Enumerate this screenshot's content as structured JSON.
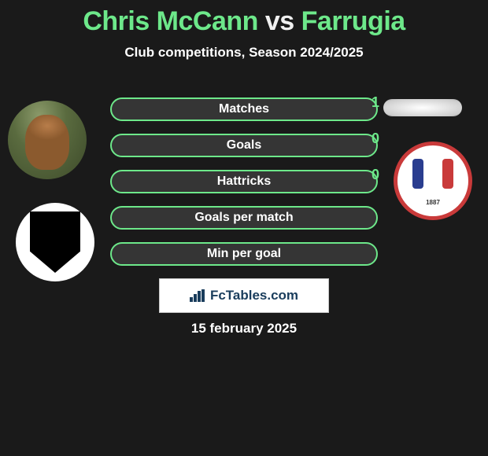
{
  "title": {
    "player1": "Chris McCann",
    "vs": "vs",
    "player2": "Farrugia"
  },
  "subtitle": "Club competitions, Season 2024/2025",
  "stats": [
    {
      "label": "Matches",
      "value": "1"
    },
    {
      "label": "Goals",
      "value": "0"
    },
    {
      "label": "Hattricks",
      "value": "0"
    },
    {
      "label": "Goals per match",
      "value": ""
    },
    {
      "label": "Min per goal",
      "value": ""
    }
  ],
  "club_badge_right_year": "1887",
  "brand": "FcTables.com",
  "date": "15 february 2025",
  "colors": {
    "accent": "#6de88a",
    "background": "#1a1a1a",
    "badge_border": "#c93a3a",
    "brand_color": "#1a3d5c"
  }
}
